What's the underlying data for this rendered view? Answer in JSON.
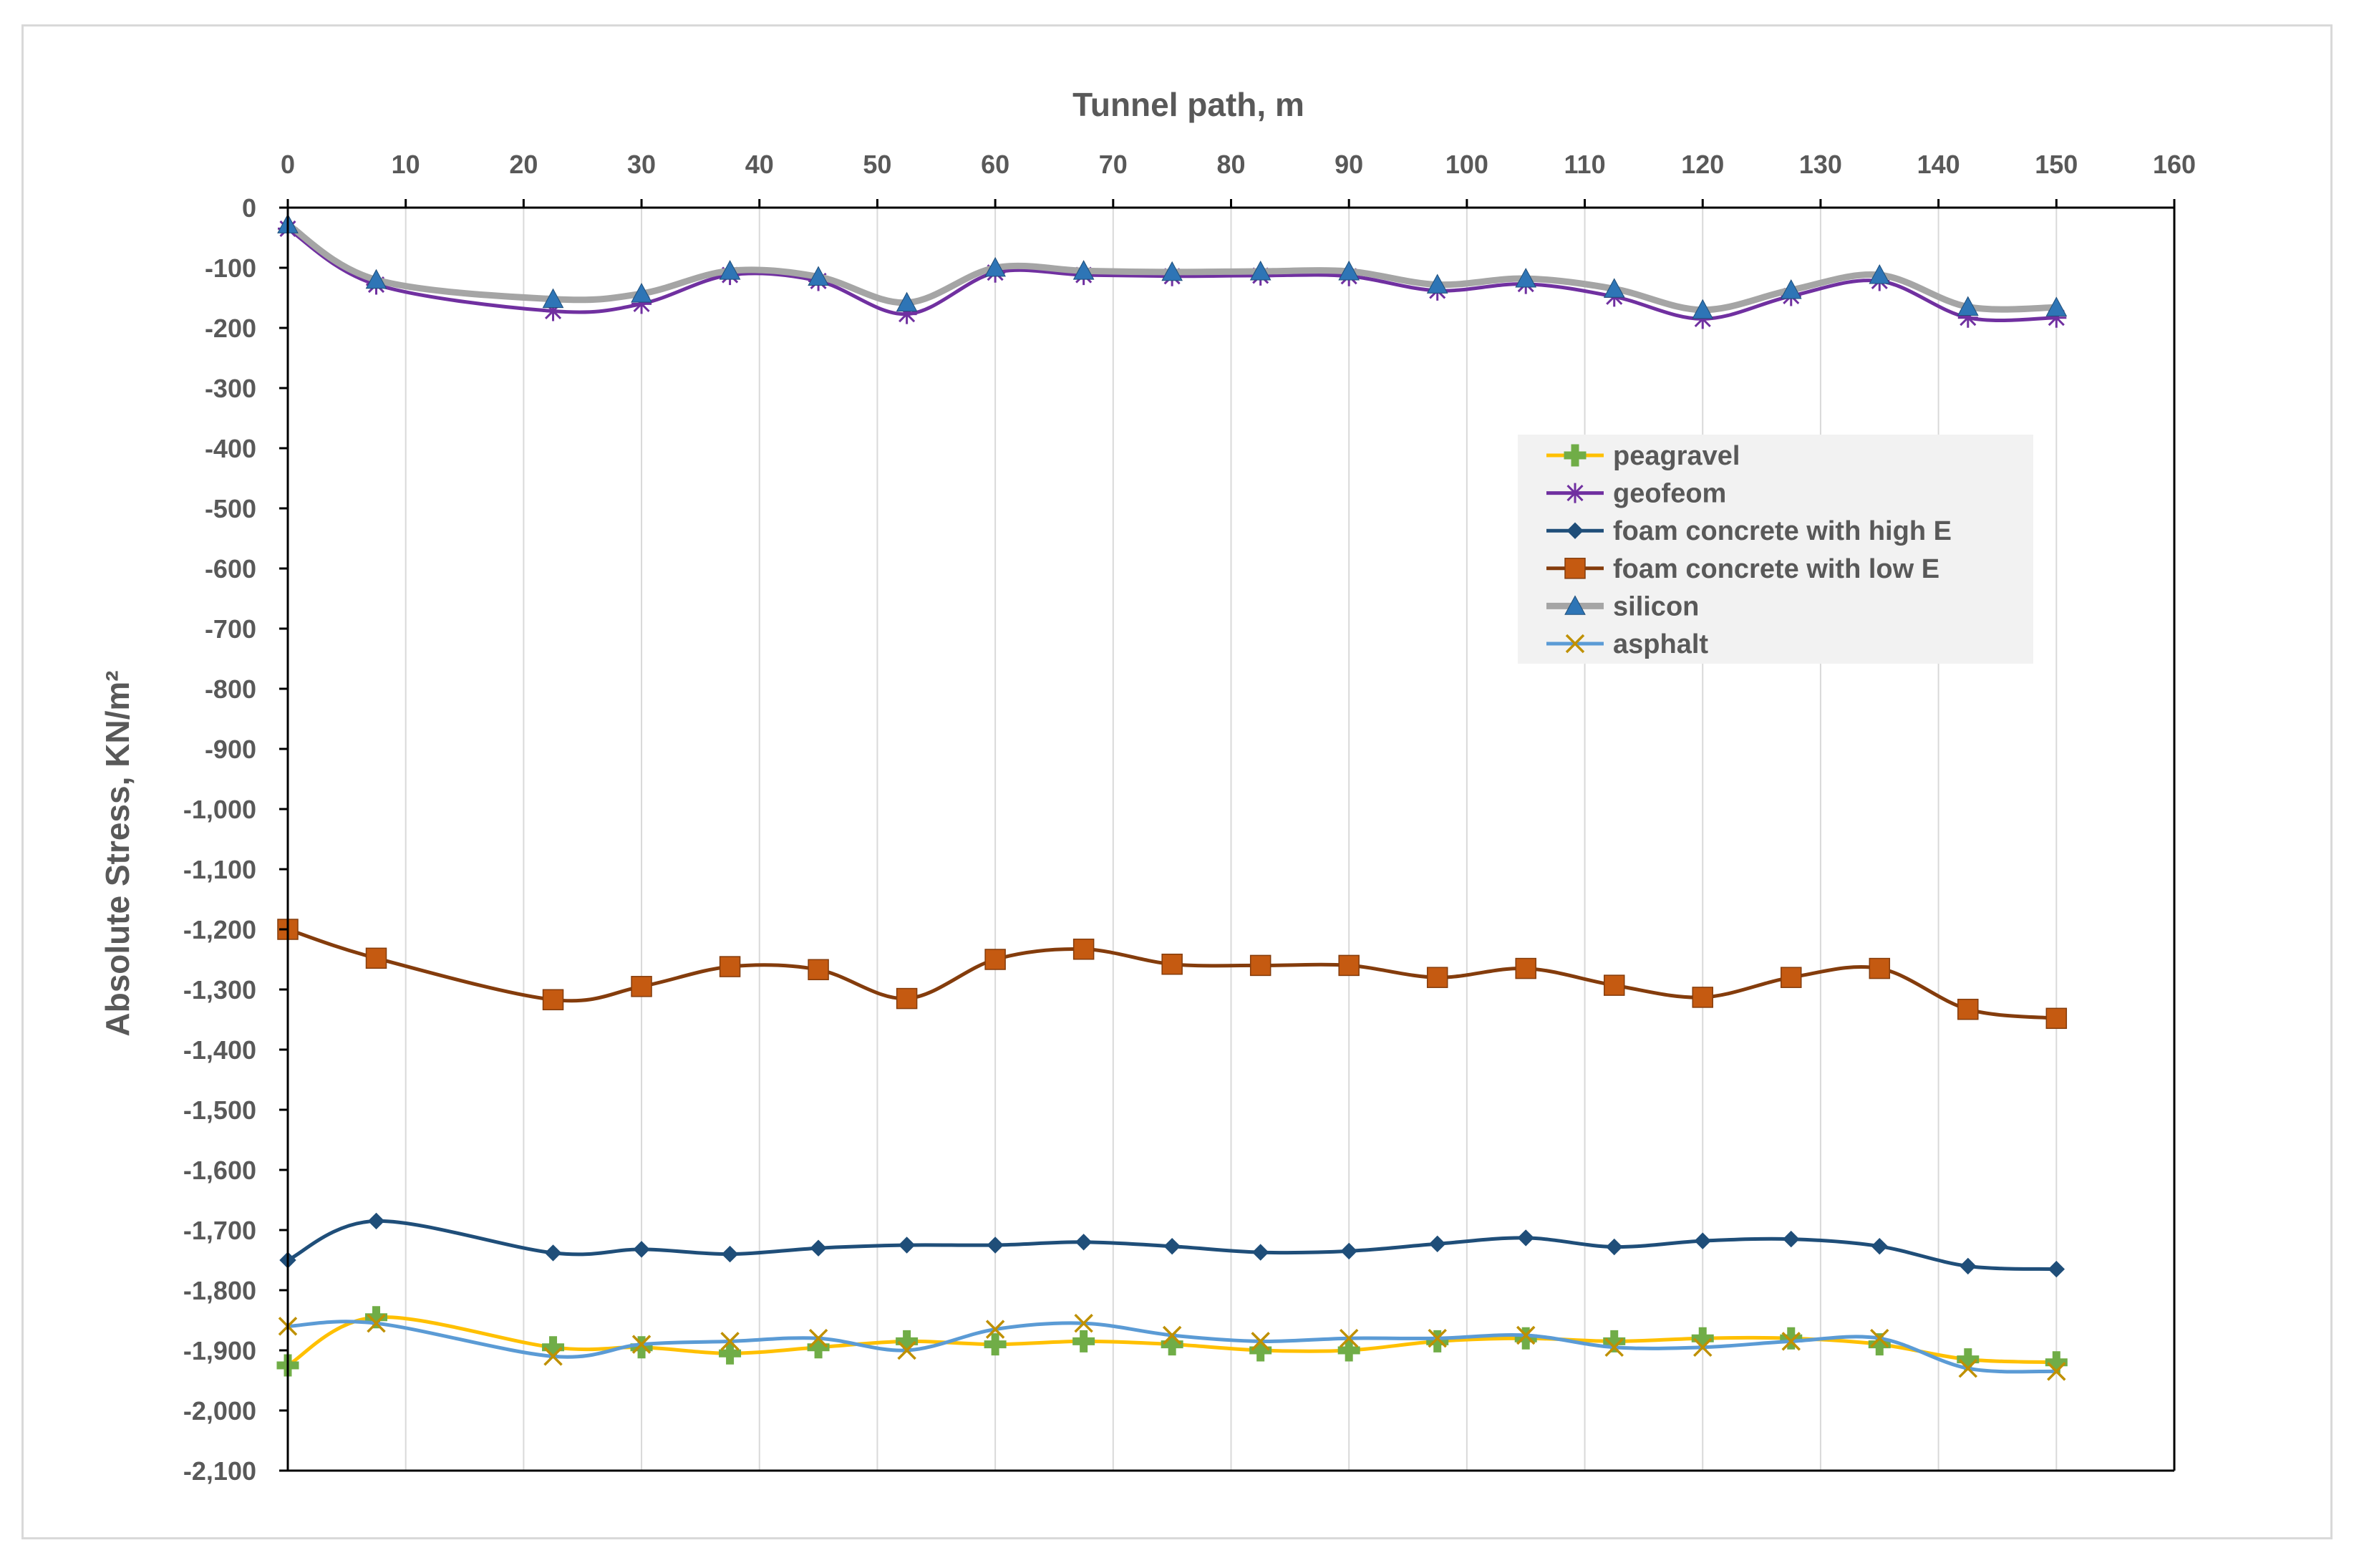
{
  "chart_data": {
    "type": "line",
    "xlabel": "Tunnel path, m",
    "ylabel": "Absolute Stress, KN/m²",
    "xlim": [
      0,
      160
    ],
    "ylim": [
      -2100,
      0
    ],
    "x_ticks": [
      0,
      10,
      20,
      30,
      40,
      50,
      60,
      70,
      80,
      90,
      100,
      110,
      120,
      130,
      140,
      150,
      160
    ],
    "x_tick_labels": [
      "0",
      "10",
      "20",
      "30",
      "40",
      "50",
      "60",
      "70",
      "80",
      "90",
      "100",
      "110",
      "120",
      "130",
      "140",
      "150",
      "160"
    ],
    "y_ticks": [
      0,
      -100,
      -200,
      -300,
      -400,
      -500,
      -600,
      -700,
      -800,
      -900,
      -1000,
      -1100,
      -1200,
      -1300,
      -1400,
      -1500,
      -1600,
      -1700,
      -1800,
      -1900,
      -2000,
      -2100
    ],
    "y_tick_labels": [
      "0",
      "-100",
      "-200",
      "-300",
      "-400",
      "-500",
      "-600",
      "-700",
      "-800",
      "-900",
      "-1,000",
      "-1,100",
      "-1,200",
      "-1,300",
      "-1,400",
      "-1,500",
      "-1,600",
      "-1,700",
      "-1,800",
      "-1,900",
      "-2,000",
      "-2,100"
    ],
    "x_gridlines": true,
    "y_gridlines": false,
    "legend_position": "upper-right",
    "x": [
      0,
      7.5,
      22.5,
      30,
      37.5,
      45,
      52.5,
      60,
      67.5,
      75,
      82.5,
      90,
      97.5,
      105,
      112.5,
      120,
      127.5,
      135,
      142.5,
      150
    ],
    "series": [
      {
        "name": "peagravel",
        "color": "#FFC000",
        "marker": "plus",
        "marker_color": "#70AD47",
        "values": [
          -1925,
          -1845,
          -1895,
          -1895,
          -1905,
          -1895,
          -1885,
          -1890,
          -1885,
          -1890,
          -1900,
          -1900,
          -1885,
          -1880,
          -1885,
          -1880,
          -1880,
          -1890,
          -1915,
          -1920
        ]
      },
      {
        "name": "geofeom",
        "color": "#7030A0",
        "marker": "asterisk",
        "marker_color": "#7030A0",
        "values": [
          -35,
          -128,
          -172,
          -160,
          -112,
          -122,
          -177,
          -108,
          -112,
          -114,
          -113,
          -114,
          -138,
          -127,
          -148,
          -185,
          -147,
          -122,
          -183,
          -183
        ]
      },
      {
        "name": " foam concrete with high  E",
        "color": "#1F4E79",
        "marker": "diamond",
        "marker_color": "#1F4E79",
        "values": [
          -1750,
          -1685,
          -1738,
          -1732,
          -1740,
          -1730,
          -1725,
          -1725,
          -1720,
          -1727,
          -1737,
          -1735,
          -1723,
          -1713,
          -1728,
          -1718,
          -1715,
          -1727,
          -1760,
          -1765
        ]
      },
      {
        "name": "foam concrete with low  E",
        "color": "#843C0C",
        "marker": "square",
        "marker_color": "#C55A11",
        "values": [
          -1200,
          -1248,
          -1317,
          -1295,
          -1262,
          -1267,
          -1315,
          -1250,
          -1233,
          -1258,
          -1260,
          -1260,
          -1280,
          -1265,
          -1293,
          -1313,
          -1280,
          -1265,
          -1333,
          -1348
        ]
      },
      {
        "name": "silicon",
        "color": "#A5A5A5",
        "marker": "triangle",
        "marker_color": "#2E75B6",
        "values": [
          -28,
          -120,
          -152,
          -143,
          -105,
          -115,
          -158,
          -100,
          -105,
          -107,
          -106,
          -106,
          -128,
          -118,
          -135,
          -170,
          -137,
          -112,
          -165,
          -166
        ]
      },
      {
        "name": "asphalt",
        "color": "#5B9BD5",
        "marker": "x",
        "marker_color": "#BF9000",
        "values": [
          -1860,
          -1855,
          -1910,
          -1890,
          -1885,
          -1880,
          -1900,
          -1865,
          -1855,
          -1875,
          -1885,
          -1880,
          -1880,
          -1875,
          -1895,
          -1895,
          -1885,
          -1880,
          -1930,
          -1935
        ]
      }
    ]
  }
}
